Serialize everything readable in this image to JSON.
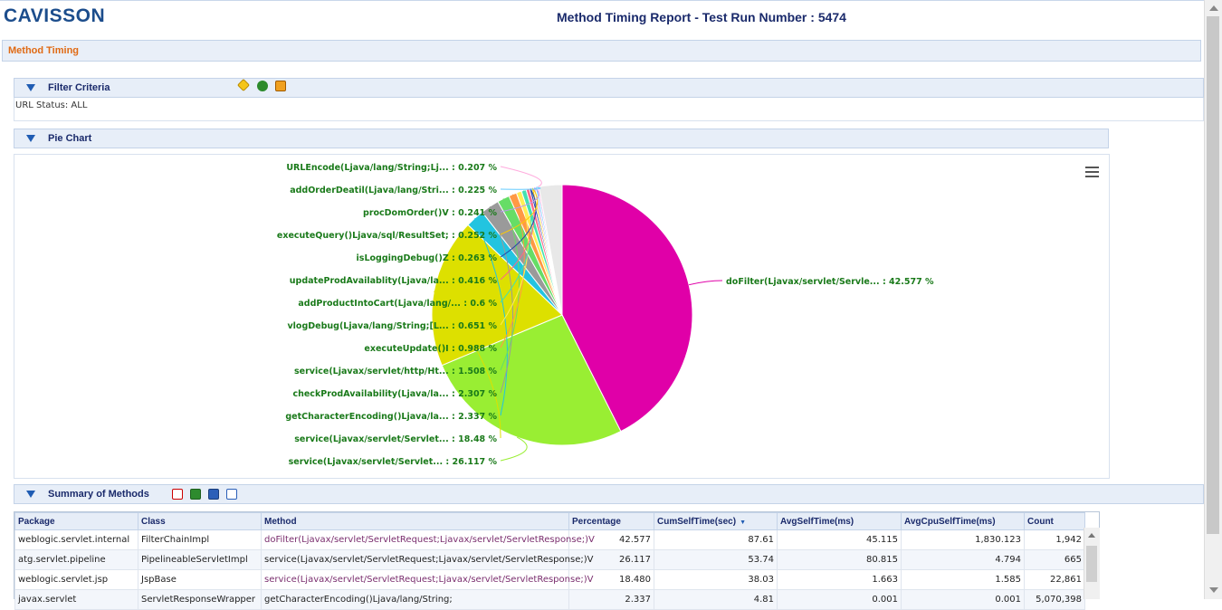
{
  "header": {
    "logo": "CAVISSON",
    "title": "Method Timing Report - Test Run Number : 5474"
  },
  "breadcrumb": "Method Timing",
  "filter": {
    "title": "Filter Criteria",
    "status": "URL Status: ALL"
  },
  "pie_section": {
    "title": "Pie Chart"
  },
  "summary": {
    "title": "Summary of Methods"
  },
  "colors": {
    "accent": "#1f5cb3",
    "breadcrumb": "#e06a14",
    "label_green": "#1a7a1a"
  },
  "chart_data": {
    "type": "pie",
    "slices": [
      {
        "label": "doFilter(Ljavax/servlet/Servle... : 42.577 %",
        "value": 42.577,
        "color": "#e000a8"
      },
      {
        "label": "service(Ljavax/servlet/Servlet... : 26.117 %",
        "value": 26.117,
        "color": "#99ee33"
      },
      {
        "label": "service(Ljavax/servlet/Servlet... : 18.48 %",
        "value": 18.48,
        "color": "#dde000"
      },
      {
        "label": "getCharacterEncoding()Ljava/la... : 2.337 %",
        "value": 2.337,
        "color": "#22c4e0"
      },
      {
        "label": "checkProdAvailability(Ljava/la... : 2.307 %",
        "value": 2.307,
        "color": "#9a9a9a"
      },
      {
        "label": "service(Ljavax/servlet/http/Ht... : 1.508 %",
        "value": 1.508,
        "color": "#66dd66"
      },
      {
        "label": "executeUpdate()I : 0.988 %",
        "value": 0.988,
        "color": "#ff9944"
      },
      {
        "label": "vlogDebug(Ljava/lang/String;[L... : 0.651 %",
        "value": 0.651,
        "color": "#ffee55"
      },
      {
        "label": "addProductIntoCart(Ljava/lang/... : 0.6 %",
        "value": 0.6,
        "color": "#44e0b0"
      },
      {
        "label": "updateProdAvailablity(Ljava/la... : 0.416 %",
        "value": 0.416,
        "color": "#ff6688"
      },
      {
        "label": "isLoggingDebug()Z : 0.263 %",
        "value": 0.263,
        "color": "#2244aa"
      },
      {
        "label": "executeQuery()Ljava/sql/ResultSet; : 0.252 %",
        "value": 0.252,
        "color": "#ffcc00"
      },
      {
        "label": "procDomOrder()V : 0.241 %",
        "value": 0.241,
        "color": "#bb99ee"
      },
      {
        "label": "addOrderDeatil(Ljava/lang/Stri... : 0.225 %",
        "value": 0.225,
        "color": "#66ccff"
      },
      {
        "label": "URLEncode(Ljava/lang/String;Lj... : 0.207 %",
        "value": 0.207,
        "color": "#ffaadd"
      }
    ],
    "other": {
      "value": 2.851,
      "color": "#e8e8e8"
    }
  },
  "table": {
    "columns": [
      "Package",
      "Class",
      "Method",
      "Percentage",
      "CumSelfTime(sec)",
      "AvgSelfTime(ms)",
      "AvgCpuSelfTime(ms)",
      "Count"
    ],
    "sorted_column": "CumSelfTime(sec)",
    "rows": [
      {
        "package": "weblogic.servlet.internal",
        "class": "FilterChainImpl",
        "method": "doFilter(Ljavax/servlet/ServletRequest;Ljavax/servlet/ServletResponse;)V",
        "percentage": "42.577",
        "cum": "87.61",
        "avg": "45.115",
        "cpu": "1,830.123",
        "count": "1,942",
        "link": true
      },
      {
        "package": "atg.servlet.pipeline",
        "class": "PipelineableServletImpl",
        "method": "service(Ljavax/servlet/ServletRequest;Ljavax/servlet/ServletResponse;)V",
        "percentage": "26.117",
        "cum": "53.74",
        "avg": "80.815",
        "cpu": "4.794",
        "count": "665",
        "link": false
      },
      {
        "package": "weblogic.servlet.jsp",
        "class": "JspBase",
        "method": "service(Ljavax/servlet/ServletRequest;Ljavax/servlet/ServletResponse;)V",
        "percentage": "18.480",
        "cum": "38.03",
        "avg": "1.663",
        "cpu": "1.585",
        "count": "22,861",
        "link": true
      },
      {
        "package": "javax.servlet",
        "class": "ServletResponseWrapper",
        "method": "getCharacterEncoding()Ljava/lang/String;",
        "percentage": "2.337",
        "cum": "4.81",
        "avg": "0.001",
        "cpu": "0.001",
        "count": "5,070,398",
        "link": false
      }
    ]
  }
}
